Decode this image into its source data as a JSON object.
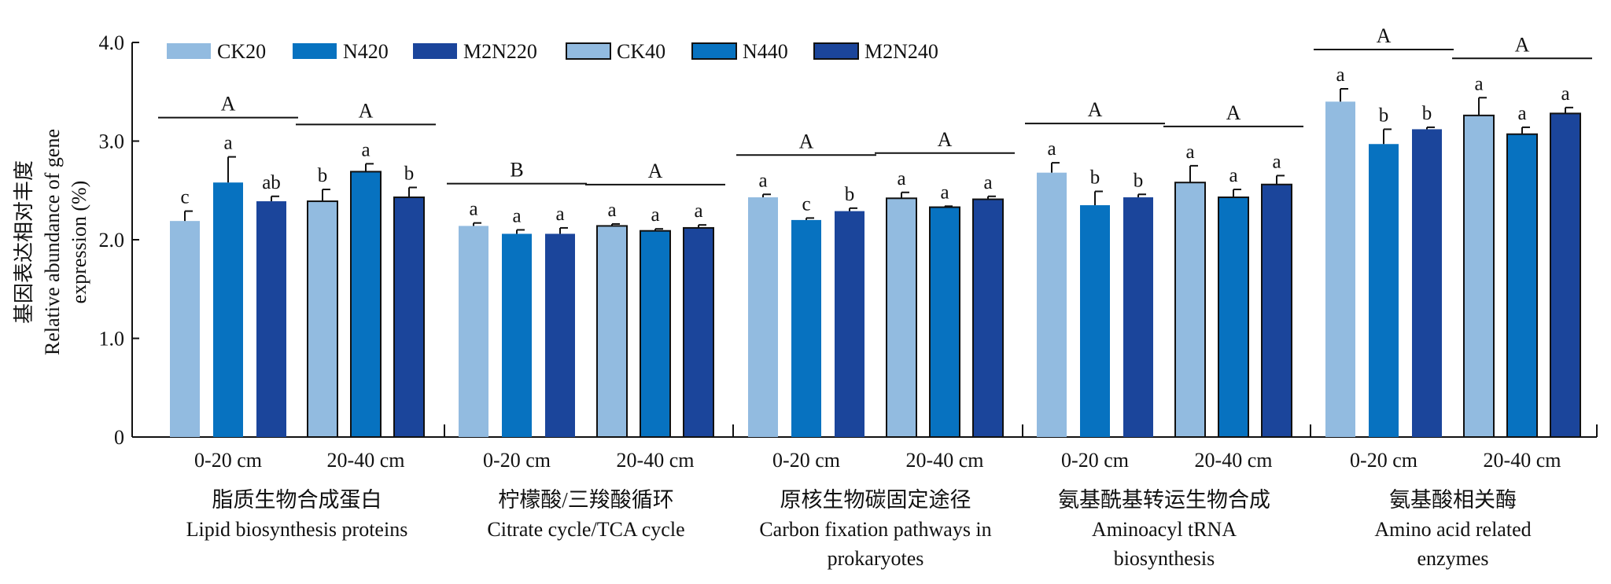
{
  "chart_data": {
    "type": "bar",
    "ylabel": [
      "基因表达相对丰度",
      "Relative abundance of gene",
      "expression (%)"
    ],
    "ylim": [
      0,
      4.0
    ],
    "yticks": [
      "0",
      "1.0",
      "2.0",
      "3.0",
      "4.0"
    ],
    "ytick_values": [
      0,
      1,
      2,
      3,
      4
    ],
    "legend_position": "top-left",
    "series": [
      {
        "name": "CK20",
        "color": "#92bbe0",
        "outlined": false,
        "depth": "0-20 cm"
      },
      {
        "name": "N420",
        "color": "#0772c0",
        "outlined": false,
        "depth": "0-20 cm"
      },
      {
        "name": "M2N220",
        "color": "#1b459b",
        "outlined": false,
        "depth": "0-20 cm"
      },
      {
        "name": "CK40",
        "color": "#92bbe0",
        "outlined": true,
        "depth": "20-40 cm"
      },
      {
        "name": "N440",
        "color": "#0772c0",
        "outlined": true,
        "depth": "20-40 cm"
      },
      {
        "name": "M2N240",
        "color": "#1b459b",
        "outlined": true,
        "depth": "20-40 cm"
      }
    ],
    "groups": [
      {
        "label_cn": "脂质生物合成蛋白",
        "label_en": [
          "Lipid biosynthesis proteins"
        ],
        "depths": [
          {
            "label": "0-20 cm",
            "letter": "A",
            "values": [
              2.19,
              2.58,
              2.39
            ],
            "errors": [
              0.1,
              0.26,
              0.05
            ],
            "sig": [
              "c",
              "a",
              "ab"
            ]
          },
          {
            "label": "20-40 cm",
            "letter": "A",
            "values": [
              2.39,
              2.69,
              2.43
            ],
            "errors": [
              0.12,
              0.08,
              0.1
            ],
            "sig": [
              "b",
              "a",
              "b"
            ]
          }
        ]
      },
      {
        "label_cn": "柠檬酸/三羧酸循环",
        "label_en": [
          "Citrate cycle/TCA cycle"
        ],
        "depths": [
          {
            "label": "0-20 cm",
            "letter": "B",
            "values": [
              2.14,
              2.06,
              2.06
            ],
            "errors": [
              0.03,
              0.04,
              0.06
            ],
            "sig": [
              "a",
              "a",
              "a"
            ]
          },
          {
            "label": "20-40 cm",
            "letter": "A",
            "values": [
              2.14,
              2.09,
              2.12
            ],
            "errors": [
              0.02,
              0.02,
              0.03
            ],
            "sig": [
              "a",
              "a",
              "a"
            ]
          }
        ]
      },
      {
        "label_cn": "原核生物碳固定途径",
        "label_en": [
          "Carbon fixation pathways in",
          "prokaryotes"
        ],
        "depths": [
          {
            "label": "0-20 cm",
            "letter": "A",
            "values": [
              2.43,
              2.2,
              2.29
            ],
            "errors": [
              0.03,
              0.02,
              0.03
            ],
            "sig": [
              "a",
              "c",
              "b"
            ]
          },
          {
            "label": "20-40 cm",
            "letter": "A",
            "values": [
              2.42,
              2.33,
              2.41
            ],
            "errors": [
              0.06,
              0.01,
              0.03
            ],
            "sig": [
              "a",
              "a",
              "a"
            ]
          }
        ]
      },
      {
        "label_cn": "氨基酰基转运生物合成",
        "label_en": [
          "Aminoacyl tRNA",
          "biosynthesis"
        ],
        "depths": [
          {
            "label": "0-20 cm",
            "letter": "A",
            "values": [
              2.68,
              2.35,
              2.43
            ],
            "errors": [
              0.1,
              0.14,
              0.03
            ],
            "sig": [
              "a",
              "b",
              "b"
            ]
          },
          {
            "label": "20-40 cm",
            "letter": "A",
            "values": [
              2.58,
              2.43,
              2.56
            ],
            "errors": [
              0.17,
              0.08,
              0.09
            ],
            "sig": [
              "a",
              "a",
              "a"
            ]
          }
        ]
      },
      {
        "label_cn": "氨基酸相关酶",
        "label_en": [
          "Amino acid related",
          "enzymes"
        ],
        "depths": [
          {
            "label": "0-20 cm",
            "letter": "A",
            "values": [
              3.4,
              2.97,
              3.12
            ],
            "errors": [
              0.13,
              0.15,
              0.02
            ],
            "sig": [
              "a",
              "b",
              "b"
            ]
          },
          {
            "label": "20-40 cm",
            "letter": "A",
            "values": [
              3.26,
              3.07,
              3.28
            ],
            "errors": [
              0.18,
              0.07,
              0.06
            ],
            "sig": [
              "a",
              "a",
              "a"
            ]
          }
        ]
      }
    ]
  }
}
